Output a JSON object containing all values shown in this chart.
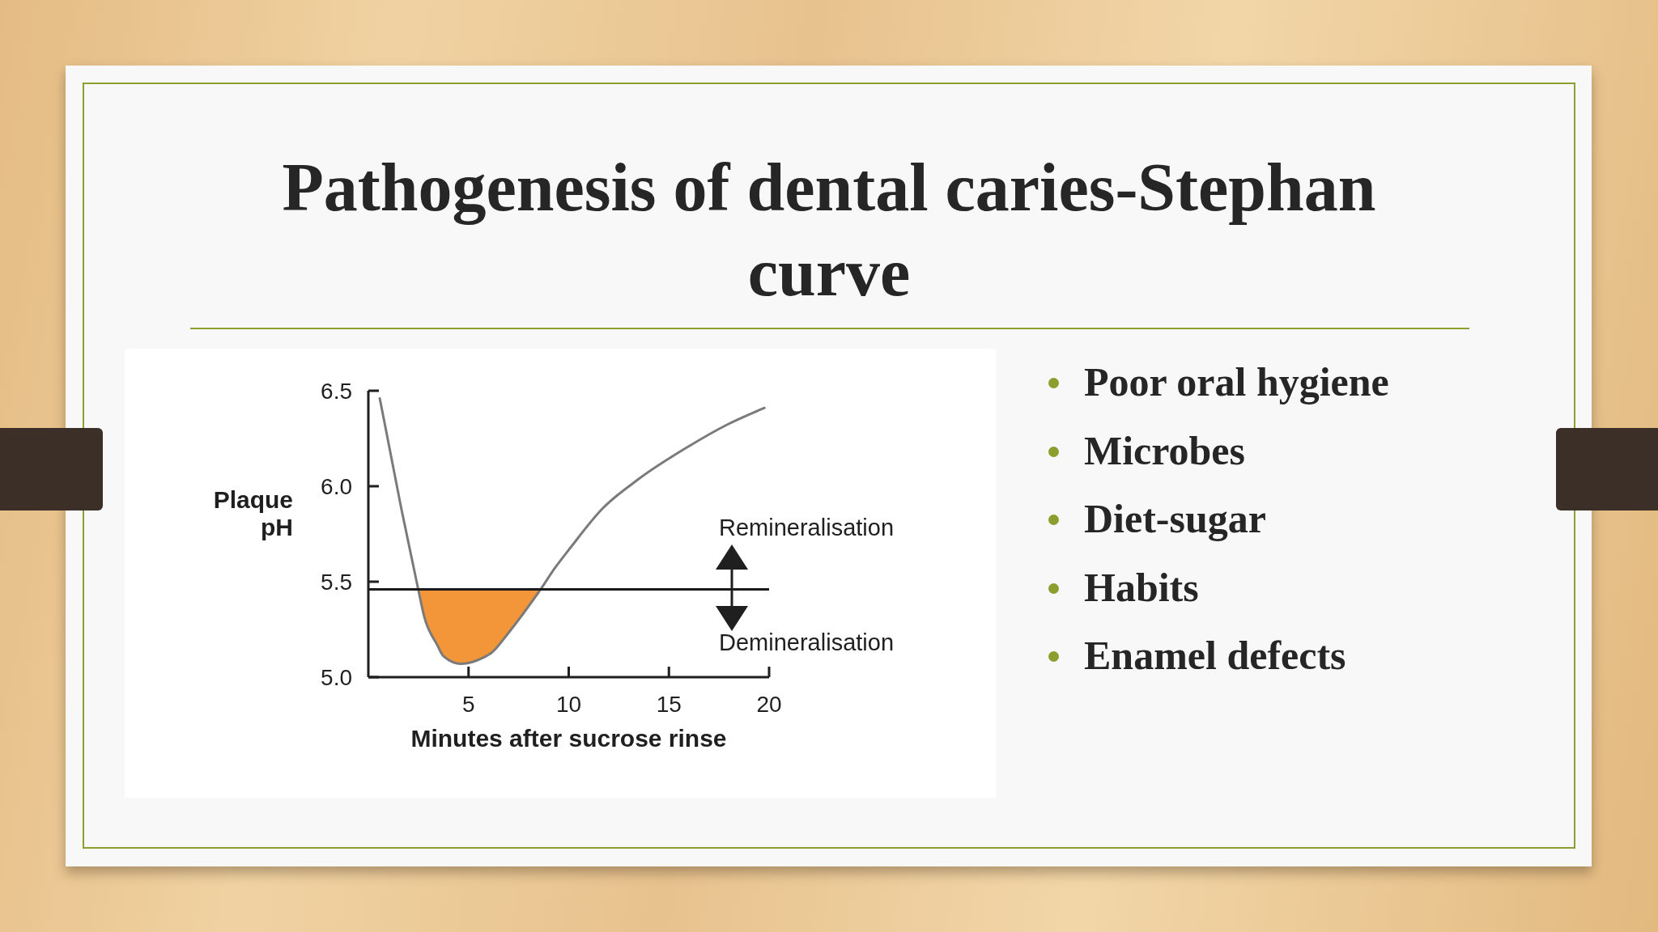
{
  "chart_data": [
    {
      "type": "line",
      "title": "Pathogenesis of dental caries-Stephan curve",
      "xlabel": "Minutes after sucrose rinse",
      "ylabel": "Plaque pH",
      "xlim": [
        0,
        20
      ],
      "xticks": [
        5,
        10,
        15,
        20
      ],
      "ylim": [
        5,
        6.5
      ],
      "yticks": [
        {
          "value": 5,
          "label": "5.0"
        },
        5.5,
        {
          "value": 6,
          "label": "6.0"
        },
        6.5
      ],
      "series": [
        {
          "type": "area",
          "color": "#f3963a",
          "x": [
            2.49,
            2.78,
            3.43,
            3.75,
            4.64,
            5.69,
            6.17,
            6.98,
            7.78,
            8.6
          ],
          "values": [
            5.46,
            5.32,
            5.17,
            5.11,
            5.07,
            5.1,
            5.13,
            5.23,
            5.34,
            5.46
          ]
        },
        {
          "type": "line",
          "color": "#7a7a7a",
          "x": [
            0.57,
            1.65,
            2.49,
            2.78,
            3.43,
            3.75,
            4.64,
            5.69,
            6.17,
            6.98,
            7.78,
            8.6,
            9.3,
            10.1,
            11.66,
            13.52,
            15.85,
            17.86,
            19.77
          ],
          "values": [
            6.46,
            5.88,
            5.46,
            5.32,
            5.17,
            5.11,
            5.07,
            5.1,
            5.13,
            5.23,
            5.34,
            5.46,
            5.57,
            5.68,
            5.88,
            6.04,
            6.2,
            6.32,
            6.41
          ]
        }
      ],
      "ref_lines": [
        {
          "axis": "y",
          "value": 5.46,
          "color": "#1a1a1a"
        }
      ],
      "annotations": [
        "Remineralisation",
        "Demineralisation"
      ]
    },
    {
      "type": "other",
      "annotations": [
        "Poor oral hygiene",
        "Microbes",
        "Diet-sugar",
        "Habits",
        "Enamel defects"
      ]
    }
  ]
}
